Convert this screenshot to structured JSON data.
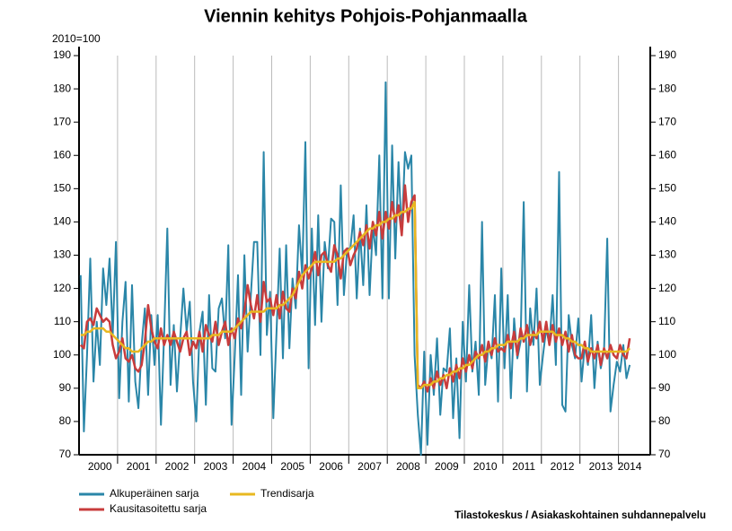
{
  "chart_data": {
    "type": "line",
    "title": "Viennin kehitys Pohjois-Pohjanmaalla",
    "y_label": "2010=100",
    "source": "Tilastokeskus / Asiakaskohtainen suhdannepalvelu",
    "ylim": [
      70,
      190
    ],
    "yticks": [
      70,
      80,
      90,
      100,
      110,
      120,
      130,
      140,
      150,
      160,
      170,
      180,
      190
    ],
    "categories": [
      null,
      null,
      null,
      null,
      null,
      null,
      "2000",
      null,
      null,
      null,
      null,
      null,
      null,
      null,
      null,
      null,
      null,
      null,
      "2001",
      null,
      null,
      null,
      null,
      null,
      null,
      null,
      null,
      null,
      null,
      null,
      "2002",
      null,
      null,
      null,
      null,
      null,
      null,
      null,
      null,
      null,
      null,
      null,
      "2003",
      null,
      null,
      null,
      null,
      null,
      null,
      null,
      null,
      null,
      null,
      null,
      "2004",
      null,
      null,
      null,
      null,
      null,
      null,
      null,
      null,
      null,
      null,
      null,
      "2005",
      null,
      null,
      null,
      null,
      null,
      null,
      null,
      null,
      null,
      null,
      null,
      "2006",
      null,
      null,
      null,
      null,
      null,
      null,
      null,
      null,
      null,
      null,
      null,
      "2007",
      null,
      null,
      null,
      null,
      null,
      null,
      null,
      null,
      null,
      null,
      null,
      "2008",
      null,
      null,
      null,
      null,
      null,
      null,
      null,
      null,
      null,
      null,
      null,
      "2009",
      null,
      null,
      null,
      null,
      null,
      null,
      null,
      null,
      null,
      null,
      null,
      "2010",
      null,
      null,
      null,
      null,
      null,
      null,
      null,
      null,
      null,
      null,
      null,
      "2011",
      null,
      null,
      null,
      null,
      null,
      null,
      null,
      null,
      null,
      null,
      null,
      "2012",
      null,
      null,
      null,
      null,
      null,
      null,
      null,
      null,
      null,
      null,
      null,
      "2013",
      null,
      null,
      null,
      null,
      null,
      null,
      null,
      null,
      "2014"
    ],
    "series": [
      {
        "name": "Alkuperäinen sarja",
        "color": "#2a86a8",
        "values": [
          124,
          77,
          100,
          129,
          92,
          110,
          97,
          126,
          115,
          129,
          106,
          134,
          87,
          110,
          122,
          86,
          121,
          92,
          84,
          103,
          114,
          88,
          112,
          97,
          112,
          79,
          106,
          138,
          91,
          109,
          89,
          105,
          120,
          107,
          116,
          92,
          80,
          107,
          113,
          85,
          118,
          96,
          95,
          114,
          117,
          105,
          133,
          79,
          100,
          124,
          88,
          130,
          101,
          118,
          134,
          134,
          100,
          161,
          106,
          119,
          81,
          107,
          132,
          99,
          133,
          102,
          123,
          114,
          139,
          124,
          164,
          96,
          138,
          109,
          142,
          110,
          134,
          126,
          141,
          140,
          115,
          151,
          118,
          132,
          132,
          142,
          117,
          138,
          121,
          145,
          118,
          139,
          130,
          160,
          117,
          182,
          117,
          163,
          129,
          158,
          136,
          161,
          156,
          160,
          100,
          82,
          70,
          101,
          73,
          100,
          88,
          105,
          82,
          96,
          95,
          108,
          81,
          99,
          75,
          110,
          92,
          121,
          95,
          104,
          88,
          140,
          91,
          103,
          99,
          118,
          86,
          126,
          96,
          118,
          87,
          111,
          99,
          104,
          146,
          89,
          114,
          103,
          120,
          91,
          100,
          108,
          103,
          118,
          97,
          155,
          85,
          83,
          112,
          103,
          99,
          111,
          92,
          103,
          97,
          112,
          90,
          104,
          96,
          101,
          135,
          83,
          91,
          98,
          95,
          103,
          93,
          97
        ]
      },
      {
        "name": "Kausitasoitettu sarja",
        "color": "#c83c3c",
        "values": [
          103,
          102,
          110,
          111,
          109,
          114,
          112,
          110,
          111,
          110,
          103,
          99,
          101,
          105,
          99,
          98,
          100,
          96,
          95,
          97,
          104,
          115,
          108,
          104,
          102,
          108,
          103,
          106,
          103,
          107,
          104,
          101,
          105,
          107,
          100,
          104,
          102,
          107,
          101,
          109,
          106,
          104,
          110,
          103,
          107,
          110,
          103,
          108,
          105,
          111,
          108,
          113,
          121,
          115,
          111,
          118,
          110,
          122,
          116,
          117,
          112,
          118,
          111,
          119,
          114,
          113,
          120,
          117,
          125,
          120,
          127,
          123,
          126,
          131,
          124,
          130,
          131,
          127,
          125,
          133,
          130,
          123,
          131,
          132,
          127,
          130,
          132,
          137,
          133,
          139,
          132,
          140,
          136,
          143,
          135,
          143,
          138,
          146,
          140,
          145,
          136,
          151,
          140,
          146,
          148,
          91,
          90,
          92,
          89,
          93,
          90,
          95,
          91,
          94,
          90,
          96,
          92,
          97,
          93,
          99,
          95,
          100,
          96,
          101,
          99,
          103,
          98,
          104,
          100,
          105,
          101,
          102,
          101,
          106,
          102,
          107,
          100,
          108,
          104,
          109,
          103,
          107,
          105,
          110,
          104,
          110,
          103,
          109,
          104,
          108,
          103,
          107,
          101,
          106,
          100,
          99,
          99,
          104,
          98,
          102,
          99,
          103,
          97,
          102,
          99,
          103,
          100,
          99,
          103,
          100,
          99,
          105
        ]
      },
      {
        "name": "Trendisarja",
        "color": "#e8b820",
        "values": [
          106,
          106,
          107,
          107,
          108,
          108,
          108,
          108,
          107,
          107,
          106,
          105,
          104,
          103,
          102,
          102,
          101,
          101,
          101,
          102,
          103,
          104,
          104,
          105,
          105,
          105,
          105,
          105,
          105,
          105,
          105,
          105,
          105,
          105,
          105,
          105,
          105,
          105,
          105,
          105,
          105,
          106,
          106,
          106,
          107,
          107,
          107,
          107,
          108,
          109,
          110,
          111,
          112,
          113,
          113,
          113,
          113,
          113,
          114,
          114,
          114,
          114,
          115,
          115,
          116,
          117,
          118,
          120,
          122,
          124,
          125,
          126,
          127,
          128,
          128,
          128,
          128,
          128,
          128,
          128,
          129,
          129,
          130,
          131,
          132,
          133,
          134,
          135,
          136,
          137,
          138,
          138,
          139,
          139,
          140,
          140,
          141,
          141,
          142,
          142,
          143,
          143,
          144,
          144,
          146,
          90,
          90,
          91,
          91,
          91,
          92,
          92,
          93,
          93,
          94,
          94,
          95,
          95,
          96,
          96,
          97,
          97,
          98,
          99,
          100,
          100,
          101,
          101,
          102,
          102,
          103,
          103,
          103,
          104,
          104,
          104,
          104,
          105,
          105,
          106,
          106,
          106,
          106,
          107,
          107,
          107,
          107,
          107,
          106,
          106,
          106,
          105,
          105,
          104,
          104,
          103,
          103,
          102,
          102,
          101,
          101,
          101,
          101,
          101,
          101,
          101,
          101,
          101,
          101,
          101,
          101,
          102
        ]
      }
    ]
  }
}
